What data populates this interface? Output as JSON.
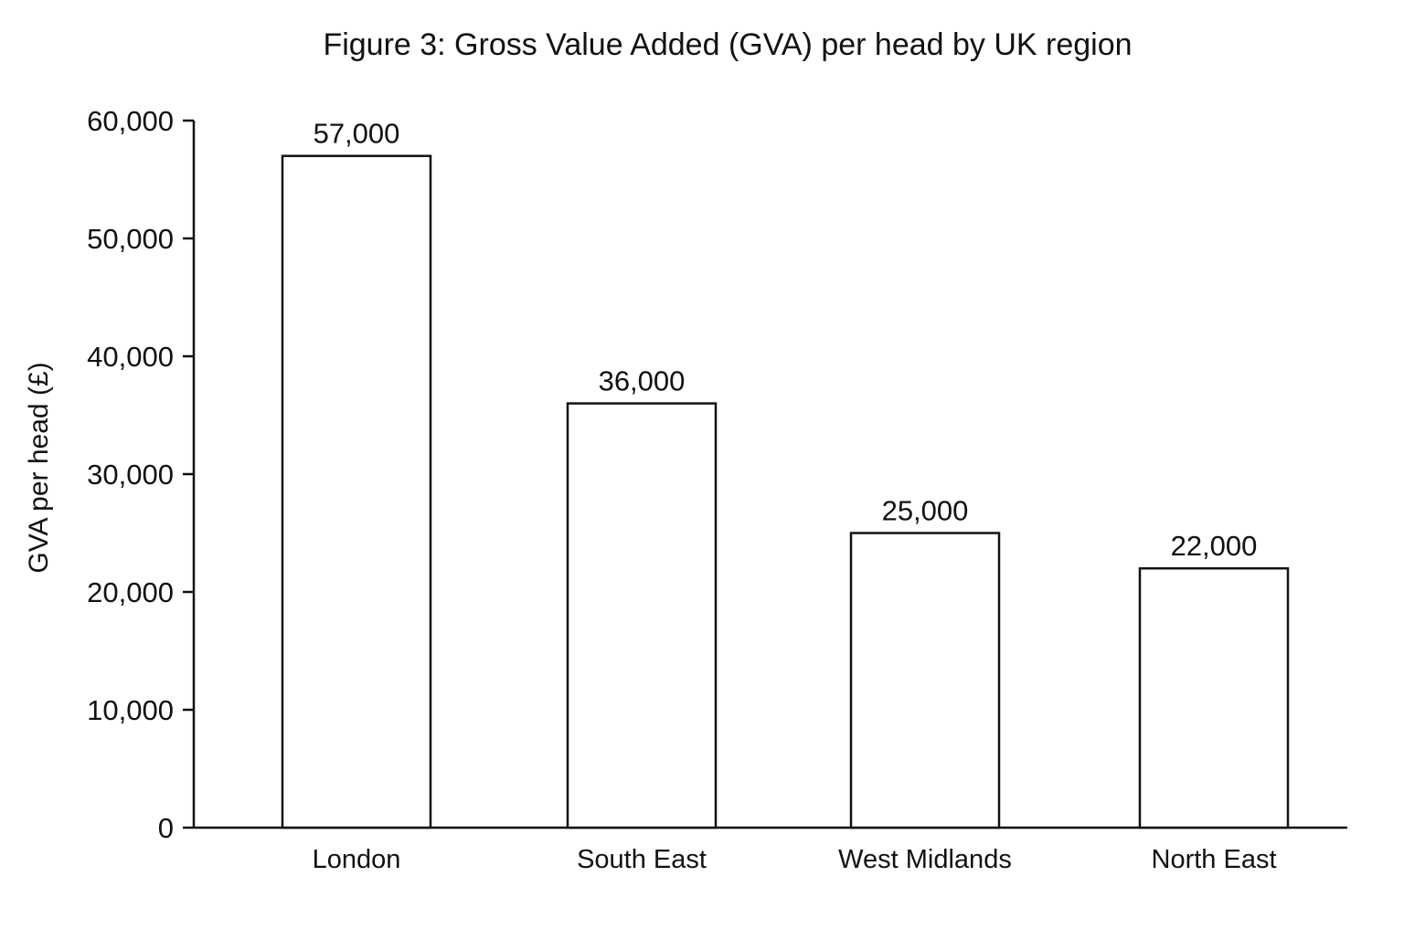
{
  "chart_data": {
    "type": "bar",
    "title": "Figure 3: Gross Value Added (GVA) per head by UK region",
    "xlabel": "",
    "ylabel": "GVA per head (£)",
    "categories": [
      "London",
      "South East",
      "West Midlands",
      "North East"
    ],
    "values": [
      57000,
      36000,
      25000,
      22000
    ],
    "data_labels": [
      "57,000",
      "36,000",
      "25,000",
      "22,000"
    ],
    "ylim": [
      0,
      60000
    ],
    "yticks": [
      0,
      10000,
      20000,
      30000,
      40000,
      50000,
      60000
    ],
    "ytick_labels": [
      "0",
      "10,000",
      "20,000",
      "30,000",
      "40,000",
      "50,000",
      "60,000"
    ],
    "grid": false,
    "legend": "none",
    "colors": {
      "bar_fill": "#ffffff",
      "bar_stroke": "#111111",
      "axis": "#111111"
    }
  }
}
